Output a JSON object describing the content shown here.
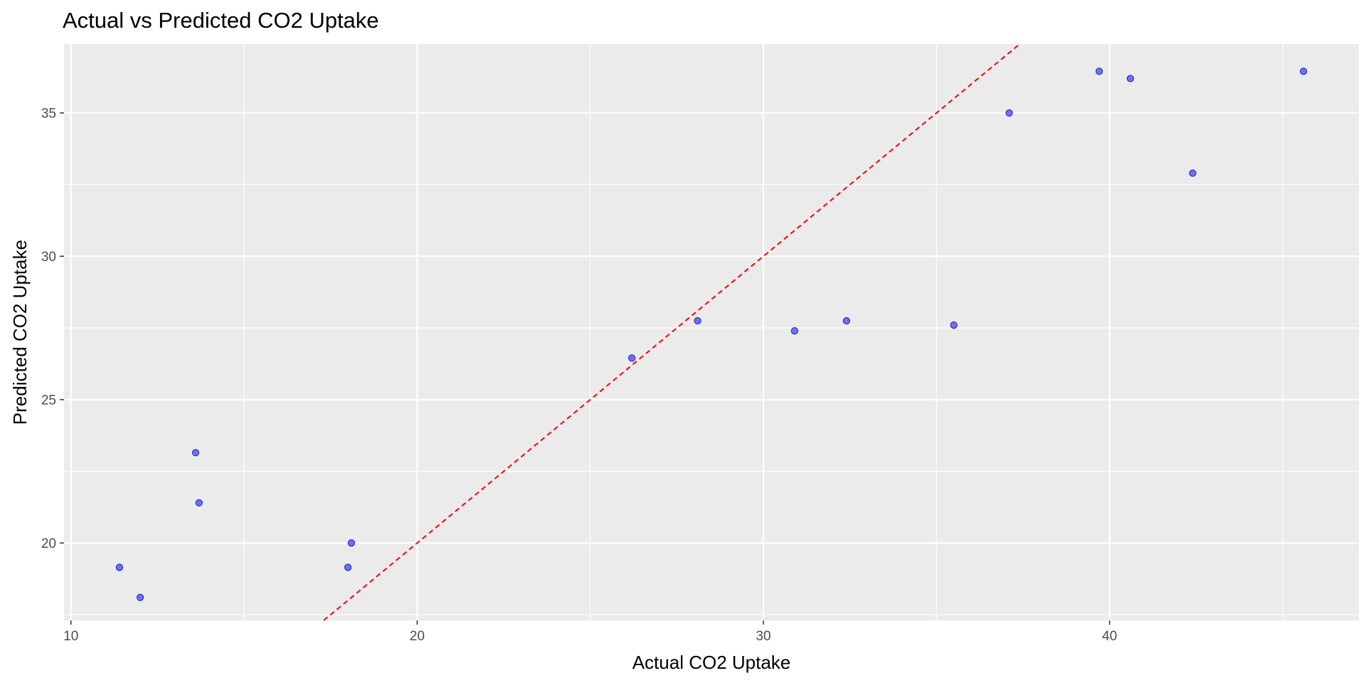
{
  "chart_data": {
    "type": "scatter",
    "title": "Actual vs Predicted CO2 Uptake",
    "xlabel": "Actual CO2 Uptake",
    "ylabel": "Predicted CO2 Uptake",
    "xlim": [
      9.8,
      47.2
    ],
    "ylim": [
      17.3,
      37.4
    ],
    "x_ticks": [
      10,
      20,
      30,
      40
    ],
    "y_ticks": [
      20,
      25,
      30,
      35
    ],
    "x_tick_labels": [
      "10",
      "20",
      "30",
      "40"
    ],
    "y_tick_labels": [
      "20",
      "25",
      "30",
      "35"
    ],
    "grid": true,
    "background_color": "#ebebeb",
    "grid_color": "#ffffff",
    "point_fill": "#6f6fff",
    "point_stroke": "#2a2ab8",
    "reference_line": {
      "type": "y = x",
      "style": "dashed",
      "color": "#ff0000"
    },
    "points": [
      {
        "x": 11.4,
        "y": 19.15
      },
      {
        "x": 12.0,
        "y": 18.1
      },
      {
        "x": 13.6,
        "y": 23.15
      },
      {
        "x": 13.7,
        "y": 21.4
      },
      {
        "x": 18.0,
        "y": 19.15
      },
      {
        "x": 18.1,
        "y": 20.0
      },
      {
        "x": 26.2,
        "y": 26.45
      },
      {
        "x": 28.1,
        "y": 27.75
      },
      {
        "x": 30.9,
        "y": 27.4
      },
      {
        "x": 32.4,
        "y": 27.75
      },
      {
        "x": 35.5,
        "y": 27.6
      },
      {
        "x": 37.1,
        "y": 35.0
      },
      {
        "x": 39.7,
        "y": 36.45
      },
      {
        "x": 40.6,
        "y": 36.2
      },
      {
        "x": 42.4,
        "y": 32.9
      },
      {
        "x": 45.6,
        "y": 36.45
      }
    ]
  }
}
